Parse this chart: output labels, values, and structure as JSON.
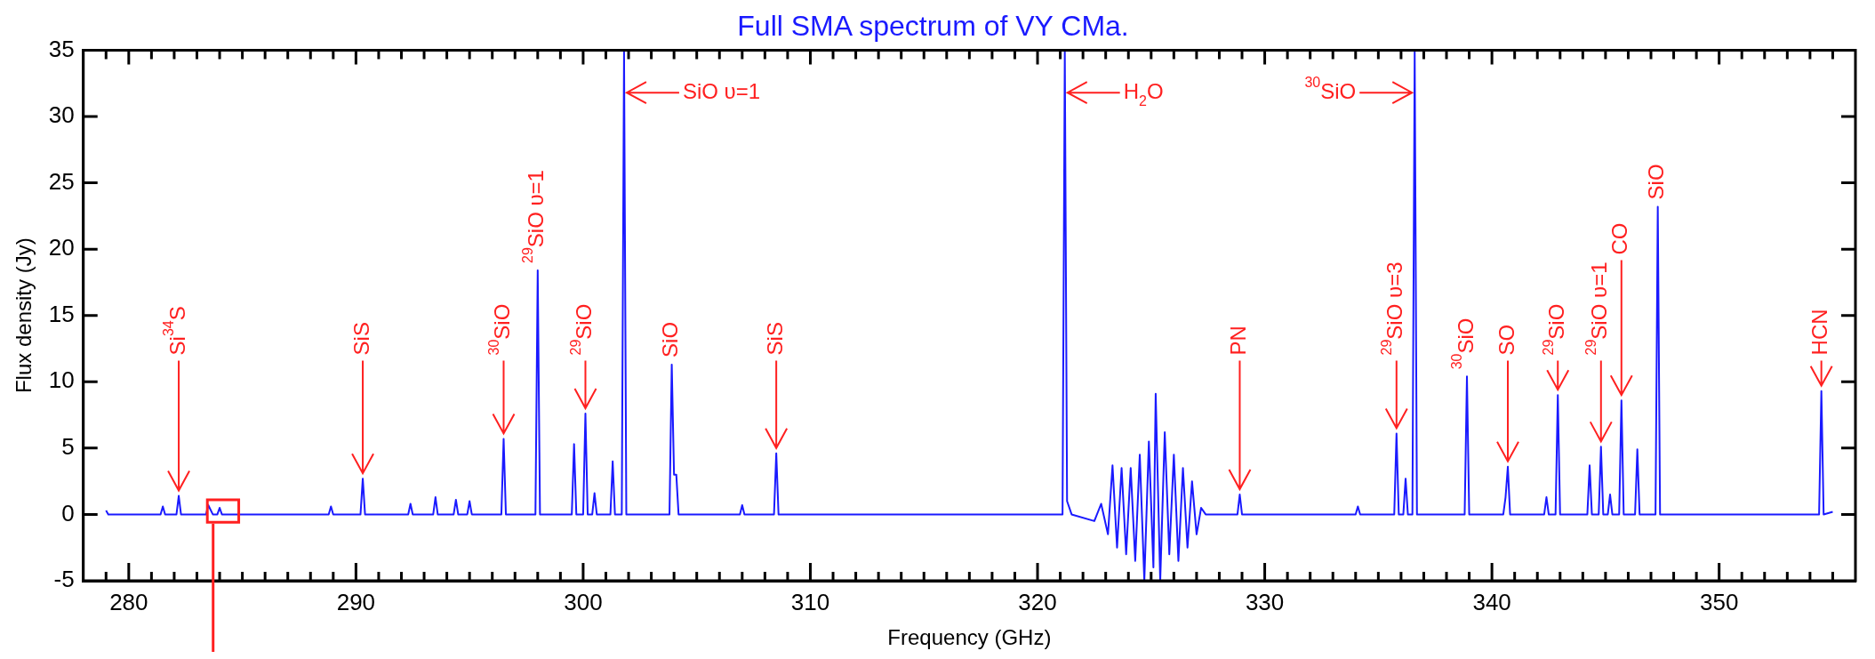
{
  "chart_data": {
    "type": "line",
    "title": "Full SMA spectrum of VY CMa.",
    "xlabel": "Frequency (GHz)",
    "ylabel": "Flux density (Jy)",
    "xlim": [
      278,
      356
    ],
    "xticks": [
      280,
      290,
      300,
      310,
      320,
      330,
      340,
      350
    ],
    "ylim": [
      -5,
      35
    ],
    "yticks": [
      -5,
      0,
      5,
      10,
      15,
      20,
      25,
      30,
      35
    ],
    "grid": false,
    "legend": false,
    "marker": "none",
    "line_style": "solid",
    "x": [
      279.0,
      279.1,
      281.4,
      281.5,
      281.6,
      282.1,
      282.2,
      282.3,
      283.4,
      283.5,
      283.7,
      283.9,
      284.0,
      284.1,
      288.8,
      288.9,
      289.0,
      290.2,
      290.3,
      290.4,
      292.3,
      292.4,
      292.5,
      293.4,
      293.5,
      293.6,
      294.3,
      294.4,
      294.5,
      294.9,
      295.0,
      295.1,
      296.4,
      296.5,
      296.6,
      297.9,
      298.0,
      298.1,
      299.5,
      299.6,
      299.7,
      300.0,
      300.1,
      300.2,
      300.4,
      300.5,
      300.6,
      301.2,
      301.3,
      301.4,
      301.7,
      301.8,
      301.9,
      303.8,
      303.9,
      304.0,
      304.1,
      304.2,
      306.9,
      307.0,
      307.1,
      308.4,
      308.5,
      308.6,
      321.1,
      321.2,
      321.3,
      321.5,
      322.5,
      322.8,
      323.1,
      323.3,
      323.5,
      323.7,
      323.9,
      324.1,
      324.3,
      324.5,
      324.7,
      324.9,
      325.1,
      325.2,
      325.4,
      325.6,
      325.8,
      326.0,
      326.2,
      326.4,
      326.6,
      326.8,
      327.0,
      327.2,
      327.4,
      328.8,
      328.9,
      329.0,
      334.0,
      334.1,
      334.2,
      335.7,
      335.8,
      335.9,
      336.1,
      336.2,
      336.3,
      336.5,
      336.6,
      336.7,
      338.8,
      338.9,
      339.0,
      340.5,
      340.6,
      340.7,
      340.8,
      342.3,
      342.4,
      342.5,
      342.8,
      342.9,
      343.0,
      344.2,
      344.3,
      344.4,
      344.7,
      344.8,
      344.9,
      345.1,
      345.2,
      345.3,
      345.6,
      345.7,
      345.8,
      346.3,
      346.4,
      346.5,
      347.2,
      347.3,
      347.4,
      354.4,
      354.5,
      354.6,
      355.0
    ],
    "series": [
      {
        "color": "#1a1aff",
        "values": [
          0.3,
          0,
          0,
          0.6,
          0,
          0,
          1.4,
          0,
          0,
          0.7,
          0,
          0,
          0.5,
          0,
          0,
          0.6,
          0,
          0,
          2.7,
          0,
          0,
          0.8,
          0,
          0,
          1.3,
          0,
          0,
          1.1,
          0,
          0,
          1.0,
          0,
          0,
          5.7,
          0,
          0,
          18.4,
          0,
          0,
          5.3,
          0,
          0,
          7.6,
          0,
          0,
          1.6,
          0,
          0,
          4.0,
          0,
          0,
          35,
          0,
          0,
          11.3,
          3.0,
          3.0,
          0,
          0,
          0.7,
          0,
          0,
          4.6,
          0,
          0,
          35,
          1.0,
          0,
          -0.5,
          0.8,
          -1.5,
          3.7,
          -2.5,
          3.5,
          -3.0,
          3.5,
          -3.5,
          4.5,
          -5,
          5.5,
          -4,
          9.1,
          -5,
          6.2,
          -3,
          4.5,
          -3.5,
          3.5,
          -2.5,
          2.5,
          -1.5,
          0.5,
          0,
          0,
          1.5,
          0,
          0,
          0.6,
          0,
          0,
          6.1,
          0,
          0,
          2.7,
          0,
          0,
          35,
          0,
          0,
          10.4,
          0,
          0,
          1.3,
          3.6,
          0,
          0,
          1.3,
          0,
          0,
          9.0,
          0,
          0,
          3.7,
          0,
          0,
          5.1,
          0,
          0,
          1.5,
          0,
          0,
          8.6,
          0,
          0,
          4.9,
          0,
          0,
          23.2,
          0,
          0,
          9.3,
          0,
          0.2
        ]
      }
    ],
    "annotations": [
      {
        "text": "Si$^{34}$S",
        "x": 282.2,
        "y": 1.4
      },
      {
        "text": "SiS",
        "x": 290.3,
        "y": 2.7
      },
      {
        "text": "$^{30}$SiO",
        "x": 296.5,
        "y": 5.7
      },
      {
        "text": "$^{29}$SiO υ=1",
        "x": 298.0,
        "y": 18.4
      },
      {
        "text": "$^{29}$SiO",
        "x": 300.1,
        "y": 7.6
      },
      {
        "text": "SiO υ=1",
        "x": 301.8,
        "y": 32
      },
      {
        "text": "SiO",
        "x": 303.9,
        "y": 11.3
      },
      {
        "text": "SiS",
        "x": 308.5,
        "y": 4.6
      },
      {
        "text": "H$_{2}$O",
        "x": 321.2,
        "y": 32
      },
      {
        "text": "PN",
        "x": 328.9,
        "y": 1.5
      },
      {
        "text": "$^{29}$SiO υ=3",
        "x": 335.8,
        "y": 6.1
      },
      {
        "text": "$^{30}$SiO",
        "x": 336.6,
        "y": 32
      },
      {
        "text": "$^{30}$SiO",
        "x": 338.9,
        "y": 10.4
      },
      {
        "text": "SO",
        "x": 340.7,
        "y": 3.6
      },
      {
        "text": "$^{29}$SiO",
        "x": 342.9,
        "y": 9.0
      },
      {
        "text": "$^{29}$SiO υ=1",
        "x": 344.8,
        "y": 5.1
      },
      {
        "text": "CO",
        "x": 345.7,
        "y": 8.6
      },
      {
        "text": "SiO",
        "x": 347.3,
        "y": 23.2
      },
      {
        "text": "HCN",
        "x": 354.5,
        "y": 9.3
      }
    ]
  }
}
